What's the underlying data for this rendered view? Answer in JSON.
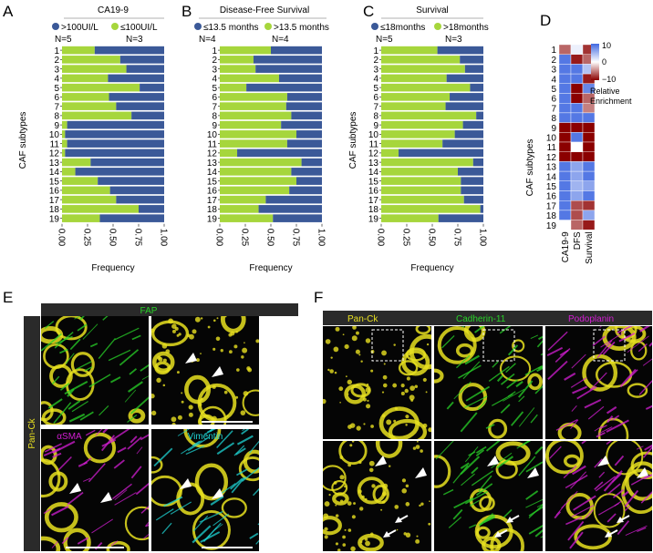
{
  "colors": {
    "blue": "#3b5998",
    "green": "#a6d63c",
    "heat_high": "#4169e1",
    "heat_mid": "#ffffff",
    "heat_low": "#8b0000",
    "yellow": "#e8e020",
    "fap_green": "#28d228",
    "magenta": "#d21ed2",
    "cyan": "#1ed2d2"
  },
  "panels": {
    "A": {
      "letter": "A"
    },
    "B": {
      "letter": "B"
    },
    "C": {
      "letter": "C"
    },
    "D": {
      "letter": "D"
    },
    "E": {
      "letter": "E"
    },
    "F": {
      "letter": "F"
    }
  },
  "chart_data": [
    {
      "type": "bar",
      "orientation": "horizontal-stacked",
      "panel": "A",
      "title": "CA19-9",
      "legend": [
        {
          "label": ">100UI/L",
          "n": "N=5",
          "color": "blue"
        },
        {
          "label": "≤100UI/L",
          "n": "N=3",
          "color": "green"
        }
      ],
      "categories": [
        "1",
        "2",
        "3",
        "4",
        "5",
        "6",
        "7",
        "8",
        "9",
        "10",
        "11",
        "12",
        "13",
        "14",
        "15",
        "16",
        "17",
        "18",
        "19"
      ],
      "series": [
        {
          "name": "≤100UI/L",
          "values": [
            0.32,
            0.57,
            0.63,
            0.45,
            0.76,
            0.46,
            0.53,
            0.68,
            0.05,
            0.03,
            0.05,
            0.03,
            0.28,
            0.13,
            0.35,
            0.47,
            0.53,
            0.75,
            0.37
          ]
        },
        {
          "name": ">100UI/L",
          "values": [
            0.68,
            0.43,
            0.37,
            0.55,
            0.24,
            0.54,
            0.47,
            0.32,
            0.95,
            0.97,
            0.95,
            0.97,
            0.72,
            0.87,
            0.65,
            0.53,
            0.47,
            0.25,
            0.63
          ]
        }
      ],
      "xlabel": "Frequency",
      "ylabel": "CAF subtypes",
      "xlim": [
        0,
        1
      ],
      "xticks": [
        "0.00",
        "0.25",
        "0.50",
        "0.75",
        "1.00"
      ]
    },
    {
      "type": "bar",
      "orientation": "horizontal-stacked",
      "panel": "B",
      "title": "Disease-Free Survival",
      "legend": [
        {
          "label": "≤13.5 months",
          "n": "N=4",
          "color": "blue"
        },
        {
          "label": ">13.5 months",
          "n": "N=4",
          "color": "green"
        }
      ],
      "categories": [
        "1",
        "2",
        "3",
        "4",
        "5",
        "6",
        "7",
        "8",
        "9",
        "10",
        "11",
        "12",
        "13",
        "14",
        "15",
        "16",
        "17",
        "18",
        "19"
      ],
      "series": [
        {
          "name": ">13.5 months",
          "values": [
            0.5,
            0.33,
            0.35,
            0.58,
            0.26,
            0.66,
            0.65,
            0.7,
            0.6,
            0.75,
            0.66,
            0.17,
            0.8,
            0.7,
            0.75,
            0.68,
            0.45,
            0.38,
            0.52
          ]
        },
        {
          "name": "≤13.5 months",
          "values": [
            0.5,
            0.67,
            0.65,
            0.42,
            0.74,
            0.34,
            0.35,
            0.3,
            0.4,
            0.25,
            0.34,
            0.83,
            0.2,
            0.3,
            0.25,
            0.32,
            0.55,
            0.62,
            0.48
          ]
        }
      ],
      "xlabel": "Frequency",
      "ylabel": "",
      "xlim": [
        0,
        1
      ],
      "xticks": [
        "0.00",
        "0.25",
        "0.50",
        "0.75",
        "1.00"
      ]
    },
    {
      "type": "bar",
      "orientation": "horizontal-stacked",
      "panel": "C",
      "title": "Survival",
      "legend": [
        {
          "label": "≤18months",
          "n": "N=5",
          "color": "blue"
        },
        {
          "label": ">18months",
          "n": "N=3",
          "color": "green"
        }
      ],
      "categories": [
        "1",
        "2",
        "3",
        "4",
        "5",
        "6",
        "7",
        "8",
        "9",
        "10",
        "11",
        "12",
        "13",
        "14",
        "15",
        "16",
        "17",
        "18",
        "19"
      ],
      "series": [
        {
          "name": ">18months",
          "values": [
            0.55,
            0.77,
            0.82,
            0.64,
            0.87,
            0.67,
            0.63,
            0.93,
            0.8,
            0.72,
            0.6,
            0.17,
            0.9,
            0.75,
            0.78,
            0.78,
            0.81,
            0.97,
            0.56
          ]
        },
        {
          "name": "≤18months",
          "values": [
            0.45,
            0.23,
            0.18,
            0.36,
            0.13,
            0.33,
            0.37,
            0.07,
            0.2,
            0.28,
            0.4,
            0.83,
            0.1,
            0.25,
            0.22,
            0.22,
            0.19,
            0.03,
            0.44
          ]
        }
      ],
      "xlabel": "Frequency",
      "ylabel": "CAF subtypes",
      "xlim": [
        0,
        1
      ],
      "xticks": [
        "0.00",
        "0.25",
        "0.50",
        "0.75",
        "1.00"
      ]
    },
    {
      "type": "heatmap",
      "panel": "D",
      "ylabel": "CAF subtypes",
      "rows": [
        "1",
        "2",
        "3",
        "4",
        "5",
        "6",
        "7",
        "8",
        "9",
        "10",
        "11",
        "12",
        "13",
        "14",
        "15",
        "16",
        "17",
        "18",
        "19"
      ],
      "columns": [
        "CA19-9",
        "DFS",
        "Survival"
      ],
      "values": [
        [
          -6,
          1,
          -8
        ],
        [
          9,
          -9,
          -6
        ],
        [
          9,
          9,
          4
        ],
        [
          9,
          9,
          -9
        ],
        [
          9,
          -10,
          8
        ],
        [
          9,
          -10,
          -6
        ],
        [
          9,
          9,
          -5
        ],
        [
          9,
          9,
          9
        ],
        [
          -10,
          -10,
          -10
        ],
        [
          -10,
          9,
          -10
        ],
        [
          -10,
          0,
          -10
        ],
        [
          -10,
          -10,
          -10
        ],
        [
          9,
          6,
          9
        ],
        [
          9,
          6,
          9
        ],
        [
          9,
          5,
          6
        ],
        [
          9,
          6,
          9
        ],
        [
          9,
          -7,
          -8
        ],
        [
          9,
          -7,
          6
        ],
        [
          0,
          -6,
          -9
        ]
      ],
      "legend": {
        "max": "10",
        "mid": "0",
        "min": "−10",
        "title_line1": "Relative",
        "title_line2": "Enrichment"
      }
    }
  ],
  "panelE": {
    "top_label": "FAP",
    "side_label": "Pan-Ck",
    "bottom_left_label": "αSMA",
    "bottom_right_label": "Vimentin"
  },
  "panelF": {
    "labels": [
      "Pan-Ck",
      "Cadherin-11",
      "Podoplanin"
    ]
  }
}
